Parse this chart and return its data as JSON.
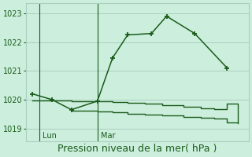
{
  "line1_x": [
    0.0,
    0.9,
    1.8,
    3.0,
    3.7,
    4.4,
    5.5,
    6.2,
    7.5,
    9.0
  ],
  "line1_y": [
    1020.2,
    1020.0,
    1019.65,
    1019.95,
    1021.45,
    1022.25,
    1022.3,
    1022.9,
    1022.3,
    1021.1
  ],
  "line2_x": [
    0.0,
    0.9,
    1.8,
    3.0,
    3.7,
    4.4,
    5.2,
    6.0,
    7.0,
    7.8,
    8.4,
    9.0,
    9.5
  ],
  "line2_y": [
    1019.97,
    1019.97,
    1019.95,
    1019.93,
    1019.91,
    1019.89,
    1019.85,
    1019.8,
    1019.75,
    1019.7,
    1019.68,
    1019.85,
    1019.2
  ],
  "line3_x": [
    1.8,
    3.0,
    3.7,
    4.4,
    5.2,
    6.0,
    7.0,
    7.8,
    8.4,
    9.0,
    9.5
  ],
  "line3_y": [
    1019.62,
    1019.6,
    1019.56,
    1019.52,
    1019.48,
    1019.44,
    1019.4,
    1019.36,
    1019.33,
    1019.22,
    1019.17
  ],
  "line_color": "#1a5c1a",
  "bg_color": "#cceedd",
  "grid_color": "#aacfbf",
  "xlabel": "Pression niveau de la mer( hPa )",
  "yticks": [
    1019,
    1020,
    1021,
    1022,
    1023
  ],
  "ylim": [
    1018.55,
    1023.35
  ],
  "xlim": [
    -0.3,
    10.0
  ],
  "lun_x": 0.3,
  "mar_x": 3.0,
  "lun_label": "Lun",
  "mar_label": "Mar",
  "xlabel_fontsize": 9,
  "tick_fontsize": 7
}
